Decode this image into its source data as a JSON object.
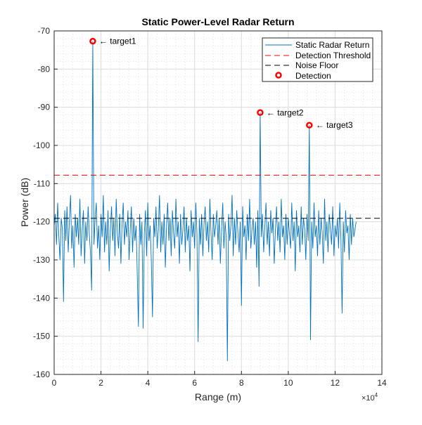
{
  "chart_data": {
    "type": "line",
    "title": "Static Power-Level Radar Return",
    "xlabel": "Range (m)",
    "ylabel": "Power (dB)",
    "x_exponent_label": "×10",
    "x_exponent": "4",
    "xlim": [
      0,
      14
    ],
    "ylim": [
      -160,
      -70
    ],
    "xticks": [
      0,
      2,
      4,
      6,
      8,
      10,
      12,
      14
    ],
    "yticks": [
      -70,
      -80,
      -90,
      -100,
      -110,
      -120,
      -130,
      -140,
      -150,
      -160
    ],
    "grid": true,
    "minor_grid": true,
    "legend_position": "top-right",
    "legend": [
      "Static Radar Return",
      "Detection Threshold",
      "Noise Floor",
      "Detection"
    ],
    "colors": {
      "signal": "#0072BD",
      "threshold": "#FF0000",
      "noise_floor": "#000000",
      "detection": "#FF0000"
    },
    "signal": {
      "x_start": 0,
      "x_step": 0.05,
      "values": [
        -121,
        -118,
        -126,
        -115,
        -124,
        -130,
        -119,
        -122,
        -141,
        -117,
        -125,
        -116,
        -128,
        -120,
        -113,
        -127,
        -121,
        -132,
        -118,
        -124,
        -119,
        -126,
        -114,
        -129,
        -122,
        -117,
        -131,
        -120,
        -125,
        -116,
        -123,
        -128,
        -138,
        -72.7,
        -126,
        -119,
        -115,
        -127,
        -121,
        -130,
        -118,
        -124,
        -113,
        -128,
        -120,
        -126,
        -117,
        -133,
        -122,
        -116,
        -125,
        -119,
        -129,
        -114,
        -123,
        -127,
        -118,
        -131,
        -121,
        -115,
        -126,
        -120,
        -124,
        -117,
        -130,
        -122,
        -116,
        -128,
        -119,
        -125,
        -121,
        -134,
        -147.5,
        -118,
        -126,
        -120,
        -148,
        -123,
        -117,
        -129,
        -115,
        -125,
        -121,
        -130,
        -145,
        -119,
        -124,
        -116,
        -127,
        -122,
        -113,
        -128,
        -120,
        -126,
        -118,
        -132,
        -121,
        -115,
        -125,
        -119,
        -129,
        -117,
        -123,
        -127,
        -114,
        -124,
        -120,
        -131,
        -118,
        -126,
        -122,
        -116,
        -128,
        -119,
        -125,
        -121,
        -133,
        -117,
        -124,
        -120,
        -127,
        -115,
        -123,
        -151.5,
        -119,
        -126,
        -118,
        -129,
        -121,
        -116,
        -125,
        -120,
        -128,
        -114,
        -123,
        -130,
        -118,
        -124,
        -121,
        -117,
        -126,
        -119,
        -131,
        -122,
        -115,
        -127,
        -120,
        -124,
        -156.5,
        -118,
        -125,
        -121,
        -113,
        -129,
        -119,
        -126,
        -117,
        -123,
        -128,
        -120,
        -142,
        -116,
        -124,
        -121,
        -130,
        -118,
        -125,
        -114,
        -127,
        -122,
        -119,
        -126,
        -120,
        -132,
        -117,
        -137,
        -91.4,
        -124,
        -118,
        -128,
        -121,
        -115,
        -126,
        -120,
        -129,
        -117,
        -123,
        -119,
        -131,
        -122,
        -116,
        -125,
        -120,
        -128,
        -114,
        -124,
        -121,
        -130,
        -118,
        -126,
        -119,
        -123,
        -127,
        -115,
        -125,
        -120,
        -133,
        -117,
        -124,
        -121,
        -128,
        -116,
        -126,
        -119,
        -122,
        -130,
        -118,
        -125,
        -94.7,
        -151,
        -120,
        -127,
        -115,
        -124,
        -121,
        -129,
        -117,
        -126,
        -119,
        -123,
        -131,
        -114,
        -125,
        -120,
        -128,
        -118,
        -122,
        -126,
        -116,
        -129,
        -121,
        -124,
        -119,
        -127,
        -115,
        -125,
        -144,
        -120,
        -128,
        -117,
        -123,
        -121,
        -130,
        -118,
        -126,
        -119,
        -124,
        -122,
        -120
      ]
    },
    "threshold": -107.8,
    "noise_floor": -119.1,
    "detections": [
      {
        "label": "← target1",
        "x": 1.65,
        "y": -72.7
      },
      {
        "label": "← target2",
        "x": 8.8,
        "y": -91.4
      },
      {
        "label": "← target3",
        "x": 10.9,
        "y": -94.7
      }
    ]
  }
}
